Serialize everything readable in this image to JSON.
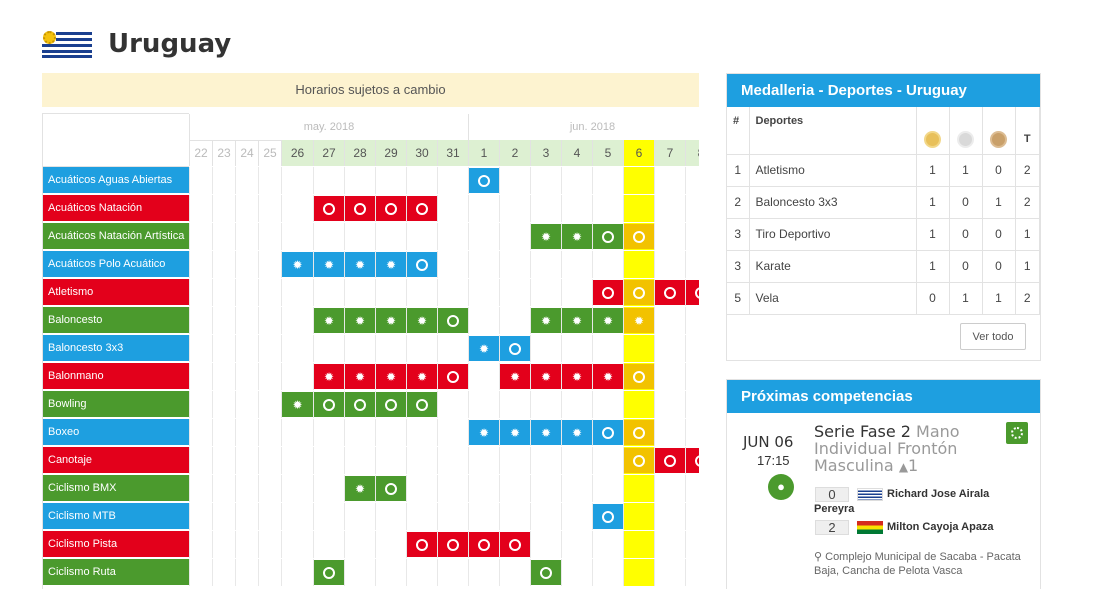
{
  "header": {
    "country": "Uruguay",
    "flag_icon": "uruguay-flag-icon"
  },
  "notice": "Horarios sujetos a cambio",
  "calendar": {
    "months": [
      {
        "label": "may. 2018",
        "span": 10
      },
      {
        "label": "jun. 2018",
        "span": 8
      }
    ],
    "days": [
      {
        "label": "22",
        "style": "past"
      },
      {
        "label": "23",
        "style": "past"
      },
      {
        "label": "24",
        "style": "past"
      },
      {
        "label": "25",
        "style": "past"
      },
      {
        "label": "26",
        "style": "green"
      },
      {
        "label": "27",
        "style": "green"
      },
      {
        "label": "28",
        "style": "green"
      },
      {
        "label": "29",
        "style": "green"
      },
      {
        "label": "30",
        "style": "green"
      },
      {
        "label": "31",
        "style": "green"
      },
      {
        "label": "1",
        "style": "green"
      },
      {
        "label": "2",
        "style": "green"
      },
      {
        "label": "3",
        "style": "green"
      },
      {
        "label": "4",
        "style": "green"
      },
      {
        "label": "5",
        "style": "green"
      },
      {
        "label": "6",
        "style": "today"
      },
      {
        "label": "7",
        "style": "green"
      },
      {
        "label": "8",
        "style": "green"
      }
    ],
    "today_index": 15,
    "sports": [
      {
        "name": "Acuáticos Aguas Abiertas",
        "color": "blue",
        "events": [
          [
            10,
            "m"
          ]
        ]
      },
      {
        "name": "Acuáticos Natación",
        "color": "red",
        "events": [
          [
            5,
            "m"
          ],
          [
            6,
            "m"
          ],
          [
            7,
            "m"
          ],
          [
            8,
            "m"
          ]
        ]
      },
      {
        "name": "Acuáticos Natación Artística",
        "color": "green",
        "events": [
          [
            12,
            "f"
          ],
          [
            13,
            "f"
          ],
          [
            14,
            "m"
          ],
          [
            15,
            "m"
          ]
        ]
      },
      {
        "name": "Acuáticos Polo Acuático",
        "color": "blue",
        "events": [
          [
            4,
            "f"
          ],
          [
            5,
            "f"
          ],
          [
            6,
            "f"
          ],
          [
            7,
            "f"
          ],
          [
            8,
            "m"
          ]
        ]
      },
      {
        "name": "Atletismo",
        "color": "red",
        "events": [
          [
            14,
            "m"
          ],
          [
            15,
            "m"
          ],
          [
            16,
            "m"
          ],
          [
            17,
            "m"
          ]
        ]
      },
      {
        "name": "Baloncesto",
        "color": "green",
        "events": [
          [
            5,
            "f"
          ],
          [
            6,
            "f"
          ],
          [
            7,
            "f"
          ],
          [
            8,
            "f"
          ],
          [
            9,
            "m"
          ],
          [
            12,
            "f"
          ],
          [
            13,
            "f"
          ],
          [
            14,
            "f"
          ],
          [
            15,
            "f"
          ]
        ]
      },
      {
        "name": "Baloncesto 3x3",
        "color": "blue",
        "events": [
          [
            10,
            "f"
          ],
          [
            11,
            "m"
          ]
        ]
      },
      {
        "name": "Balonmano",
        "color": "red",
        "events": [
          [
            5,
            "f"
          ],
          [
            6,
            "f"
          ],
          [
            7,
            "f"
          ],
          [
            8,
            "f"
          ],
          [
            9,
            "m"
          ],
          [
            11,
            "f"
          ],
          [
            12,
            "f"
          ],
          [
            13,
            "f"
          ],
          [
            14,
            "f"
          ],
          [
            15,
            "m"
          ]
        ]
      },
      {
        "name": "Bowling",
        "color": "green",
        "events": [
          [
            4,
            "f"
          ],
          [
            5,
            "m"
          ],
          [
            6,
            "m"
          ],
          [
            7,
            "m"
          ],
          [
            8,
            "m"
          ]
        ]
      },
      {
        "name": "Boxeo",
        "color": "blue",
        "events": [
          [
            10,
            "f"
          ],
          [
            11,
            "f"
          ],
          [
            12,
            "f"
          ],
          [
            13,
            "f"
          ],
          [
            14,
            "m"
          ],
          [
            15,
            "m"
          ]
        ]
      },
      {
        "name": "Canotaje",
        "color": "red",
        "events": [
          [
            15,
            "m"
          ],
          [
            16,
            "m"
          ],
          [
            17,
            "m"
          ]
        ]
      },
      {
        "name": "Ciclismo BMX",
        "color": "green",
        "events": [
          [
            6,
            "f"
          ],
          [
            7,
            "m"
          ]
        ]
      },
      {
        "name": "Ciclismo MTB",
        "color": "blue",
        "events": [
          [
            14,
            "m"
          ]
        ]
      },
      {
        "name": "Ciclismo Pista",
        "color": "red",
        "events": [
          [
            8,
            "m"
          ],
          [
            9,
            "m"
          ],
          [
            10,
            "m"
          ],
          [
            11,
            "m"
          ]
        ]
      },
      {
        "name": "Ciclismo Ruta",
        "color": "green",
        "events": [
          [
            5,
            "m"
          ],
          [
            12,
            "m"
          ]
        ]
      }
    ]
  },
  "medals": {
    "title": "Medalleria - Deportes - Uruguay",
    "col_rank": "#",
    "col_sport": "Deportes",
    "col_total": "T",
    "rows": [
      {
        "rank": "1",
        "sport": "Atletismo",
        "gold": "1",
        "silver": "1",
        "bronze": "0",
        "total": "2"
      },
      {
        "rank": "2",
        "sport": "Baloncesto 3x3",
        "gold": "1",
        "silver": "0",
        "bronze": "1",
        "total": "2"
      },
      {
        "rank": "3",
        "sport": "Tiro Deportivo",
        "gold": "1",
        "silver": "0",
        "bronze": "0",
        "total": "1"
      },
      {
        "rank": "3",
        "sport": "Karate",
        "gold": "1",
        "silver": "0",
        "bronze": "0",
        "total": "1"
      },
      {
        "rank": "5",
        "sport": "Vela",
        "gold": "0",
        "silver": "1",
        "bronze": "1",
        "total": "2"
      }
    ],
    "view_all": "Ver todo"
  },
  "next": {
    "title": "Próximas competencias",
    "date": "JUN 06",
    "time": "17:15",
    "event_title": "Serie Fase 2",
    "event_sub": "Mano Individual Frontón Masculina",
    "bracket": "1",
    "p1_score": "0",
    "p1_name": "Richard Jose Airala",
    "p1_name_cont": "Pereyra",
    "p2_score": "2",
    "p2_name": "Milton Cayoja Apaza",
    "venue": "Complejo Municipal de Sacaba - Pacata Baja, Cancha de Pelota Vasca"
  },
  "colors": {
    "blue": "#1e9fe0",
    "red": "#e3001b",
    "green": "#4b9a2d",
    "today": "#ffff00"
  }
}
